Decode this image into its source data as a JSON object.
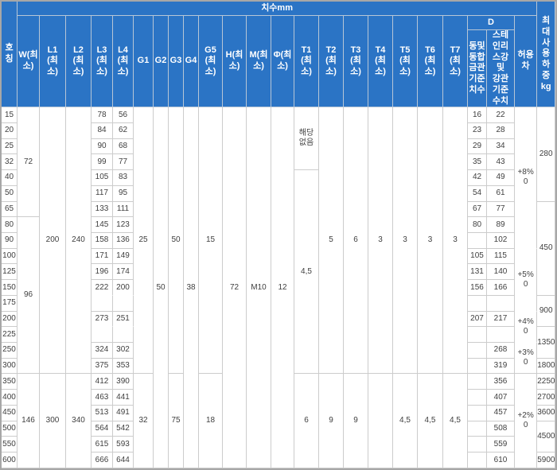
{
  "colors": {
    "header_bg": "#2b74c5",
    "header_text": "#ffffff",
    "header_grid": "#b7c6d6",
    "body_grid": "#cccccc",
    "body_text": "#3f3f3f",
    "outer_frame": "#a7a7a7"
  },
  "header": {
    "title": "치수mm",
    "size": "호\n칭",
    "w": "W(최\n소)",
    "l1": "L1\n(최\n소)",
    "l2": "L2\n(최\n소)",
    "l3": "L3\n(최\n소)",
    "l4": "L4\n(최\n소)",
    "g1": "G1",
    "g2": "G2",
    "g3": "G3",
    "g4": "G4",
    "g5": "G5\n(최\n소)",
    "h": "H(최\n소)",
    "m": "M(최\n소)",
    "phi": "Φ(최\n소)",
    "t1": "T1\n(최\n소)",
    "t2": "T2\n(최\n소)",
    "t3": "T3\n(최\n소)",
    "t4": "T4\n(최\n소)",
    "t5": "T5\n(최\n소)",
    "t6": "T6\n(최\n소)",
    "t7": "T7\n(최\n소)",
    "d": "D",
    "d1": "동및\n동합\n금관\n기준\n치수",
    "d2": "스테\n인리\n스강\n및\n강관\n기준\n수치",
    "tol": "허용\n차",
    "load": "최\n대\n사\n용\n하\n중\nkg"
  },
  "body": {
    "rows": [
      {
        "size": "15",
        "l3": "78",
        "l4": "56",
        "d1": "16",
        "d2": "22"
      },
      {
        "size": "20",
        "l3": "84",
        "l4": "62",
        "d1": "23",
        "d2": "28"
      },
      {
        "size": "25",
        "l3": "90",
        "l4": "68",
        "d1": "29",
        "d2": "34"
      },
      {
        "size": "32",
        "l3": "99",
        "l4": "77",
        "d1": "35",
        "d2": "43"
      },
      {
        "size": "40",
        "l3": "105",
        "l4": "83",
        "d1": "42",
        "d2": "49"
      },
      {
        "size": "50",
        "l3": "117",
        "l4": "95",
        "d1": "54",
        "d2": "61"
      },
      {
        "size": "65",
        "l3": "133",
        "l4": "111",
        "d1": "67",
        "d2": "77"
      },
      {
        "size": "80",
        "l3": "145",
        "l4": "123",
        "d1": "80",
        "d2": "89"
      },
      {
        "size": "90",
        "l3": "158",
        "l4": "136",
        "d1": "",
        "d2": "102"
      },
      {
        "size": "100",
        "l3": "171",
        "l4": "149",
        "d1": "105",
        "d2": "115"
      },
      {
        "size": "125",
        "l3": "196",
        "l4": "174",
        "d1": "131",
        "d2": "140"
      },
      {
        "size": "150",
        "l3": "222",
        "l4": "200",
        "d1": "156",
        "d2": "166"
      },
      {
        "size": "175",
        "l3": "",
        "l4": "",
        "d1": "",
        "d2": ""
      },
      {
        "size": "200",
        "l3": "273",
        "l4": "251",
        "d1": "207",
        "d2": "217"
      },
      {
        "size": "225",
        "l3": "",
        "l4": "",
        "d1": "",
        "d2": ""
      },
      {
        "size": "250",
        "l3": "324",
        "l4": "302",
        "d1": "",
        "d2": "268"
      },
      {
        "size": "300",
        "l3": "375",
        "l4": "353",
        "d1": "",
        "d2": "319"
      },
      {
        "size": "350",
        "l3": "412",
        "l4": "390",
        "d1": "",
        "d2": "356"
      },
      {
        "size": "400",
        "l3": "463",
        "l4": "441",
        "d1": "",
        "d2": "407"
      },
      {
        "size": "450",
        "l3": "513",
        "l4": "491",
        "d1": "",
        "d2": "457"
      },
      {
        "size": "500",
        "l3": "564",
        "l4": "542",
        "d1": "",
        "d2": "508"
      },
      {
        "size": "550",
        "l3": "615",
        "l4": "593",
        "d1": "",
        "d2": "559"
      },
      {
        "size": "600",
        "l3": "666",
        "l4": "644",
        "d1": "",
        "d2": "610"
      }
    ],
    "merges": {
      "w": [
        {
          "start": 0,
          "span": 7,
          "v": "72"
        },
        {
          "start": 7,
          "span": 10,
          "v": "96"
        },
        {
          "start": 17,
          "span": 6,
          "v": "146"
        }
      ],
      "l1": [
        {
          "start": 0,
          "span": 17,
          "v": "200"
        },
        {
          "start": 17,
          "span": 6,
          "v": "300"
        }
      ],
      "l2": [
        {
          "start": 0,
          "span": 17,
          "v": "240"
        },
        {
          "start": 17,
          "span": 6,
          "v": "340"
        }
      ],
      "g1": [
        {
          "start": 0,
          "span": 17,
          "v": "25"
        },
        {
          "start": 17,
          "span": 6,
          "v": "32"
        }
      ],
      "g2": [
        {
          "start": 0,
          "span": 23,
          "v": "50"
        }
      ],
      "g3": [
        {
          "start": 0,
          "span": 17,
          "v": "50"
        },
        {
          "start": 17,
          "span": 6,
          "v": "75"
        }
      ],
      "g4": [
        {
          "start": 0,
          "span": 23,
          "v": "38"
        }
      ],
      "g5": [
        {
          "start": 0,
          "span": 17,
          "v": "15"
        },
        {
          "start": 17,
          "span": 6,
          "v": "18"
        }
      ],
      "h": [
        {
          "start": 0,
          "span": 23,
          "v": "72"
        }
      ],
      "m": [
        {
          "start": 0,
          "span": 23,
          "v": "M10"
        }
      ],
      "phi": [
        {
          "start": 0,
          "span": 23,
          "v": "12"
        }
      ],
      "t1": [
        {
          "start": 0,
          "span": 4,
          "v": "해당\n없음"
        },
        {
          "start": 4,
          "span": 13,
          "v": "4,5"
        },
        {
          "start": 17,
          "span": 6,
          "v": "6"
        }
      ],
      "t2": [
        {
          "start": 0,
          "span": 17,
          "v": "5"
        },
        {
          "start": 17,
          "span": 6,
          "v": "9"
        }
      ],
      "t3": [
        {
          "start": 0,
          "span": 17,
          "v": "6"
        },
        {
          "start": 17,
          "span": 6,
          "v": "9"
        }
      ],
      "t4": [
        {
          "start": 0,
          "span": 17,
          "v": "3"
        },
        {
          "start": 17,
          "span": 6,
          "v": ""
        }
      ],
      "t5": [
        {
          "start": 0,
          "span": 17,
          "v": "3"
        },
        {
          "start": 17,
          "span": 6,
          "v": "4,5"
        }
      ],
      "t6": [
        {
          "start": 0,
          "span": 17,
          "v": "3"
        },
        {
          "start": 17,
          "span": 6,
          "v": "4,5"
        }
      ],
      "t7": [
        {
          "start": 0,
          "span": 17,
          "v": "3"
        },
        {
          "start": 17,
          "span": 6,
          "v": "4,5"
        }
      ],
      "tol": [
        {
          "start": 0,
          "span": 9,
          "v": "+8%\n0",
          "nb": true
        },
        {
          "start": 9,
          "span": 4,
          "v": "+5%\n0",
          "nb": true
        },
        {
          "start": 13,
          "span": 2,
          "v": "+4%\n0",
          "nb": true
        },
        {
          "start": 15,
          "span": 2,
          "v": "+3%\n0"
        },
        {
          "start": 17,
          "span": 6,
          "v": "+2%\n0"
        }
      ],
      "load": [
        {
          "start": 0,
          "span": 6,
          "v": "280"
        },
        {
          "start": 6,
          "span": 6,
          "v": "450"
        },
        {
          "start": 12,
          "span": 2,
          "v": "900"
        },
        {
          "start": 14,
          "span": 2,
          "v": "1350"
        },
        {
          "start": 16,
          "span": 1,
          "v": "1800"
        },
        {
          "start": 17,
          "span": 1,
          "v": "2250"
        },
        {
          "start": 18,
          "span": 1,
          "v": "2700"
        },
        {
          "start": 19,
          "span": 1,
          "v": "3600"
        },
        {
          "start": 20,
          "span": 2,
          "v": "4500"
        },
        {
          "start": 22,
          "span": 1,
          "v": "5900"
        }
      ]
    },
    "no_bottom_border": {
      "l3": [
        11,
        13
      ],
      "l4": [
        11,
        13
      ]
    }
  }
}
